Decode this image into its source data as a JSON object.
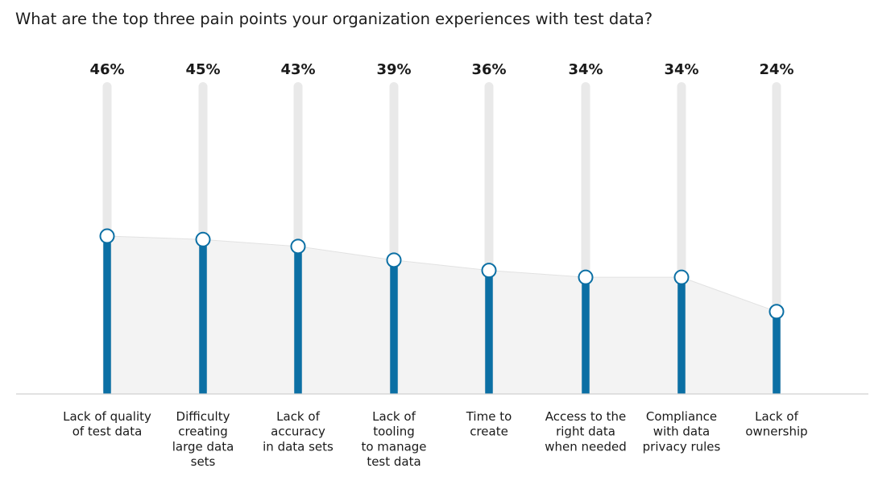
{
  "question": "What are the top three pain points your organization experiences with test data?",
  "chart_data": {
    "type": "bar",
    "title": "What are the top three pain points your organization experiences with test data?",
    "categories": [
      [
        "Lack of quality",
        "of test data"
      ],
      [
        "Difficulty",
        "creating",
        "large data",
        "sets"
      ],
      [
        "Lack of",
        "accuracy",
        "in data sets"
      ],
      [
        "Lack of",
        "tooling",
        "to manage",
        "test data"
      ],
      [
        "Time to",
        "create"
      ],
      [
        "Access to the",
        "right data",
        "when needed"
      ],
      [
        "Compliance",
        "with data",
        "privacy rules"
      ],
      [
        "Lack of",
        "ownership"
      ]
    ],
    "values": [
      46,
      45,
      43,
      39,
      36,
      34,
      34,
      24
    ],
    "value_labels": [
      "46%",
      "45%",
      "43%",
      "39%",
      "36%",
      "34%",
      "34%",
      "24%"
    ],
    "ylim": [
      0,
      100
    ],
    "grid": false,
    "colors": {
      "bar": "#0b6fa4",
      "track": "#e9e9e9",
      "area": "#f3f3f3",
      "marker_stroke": "#0b6fa4",
      "marker_fill": "#ffffff",
      "axis": "#d0d0d0"
    }
  }
}
